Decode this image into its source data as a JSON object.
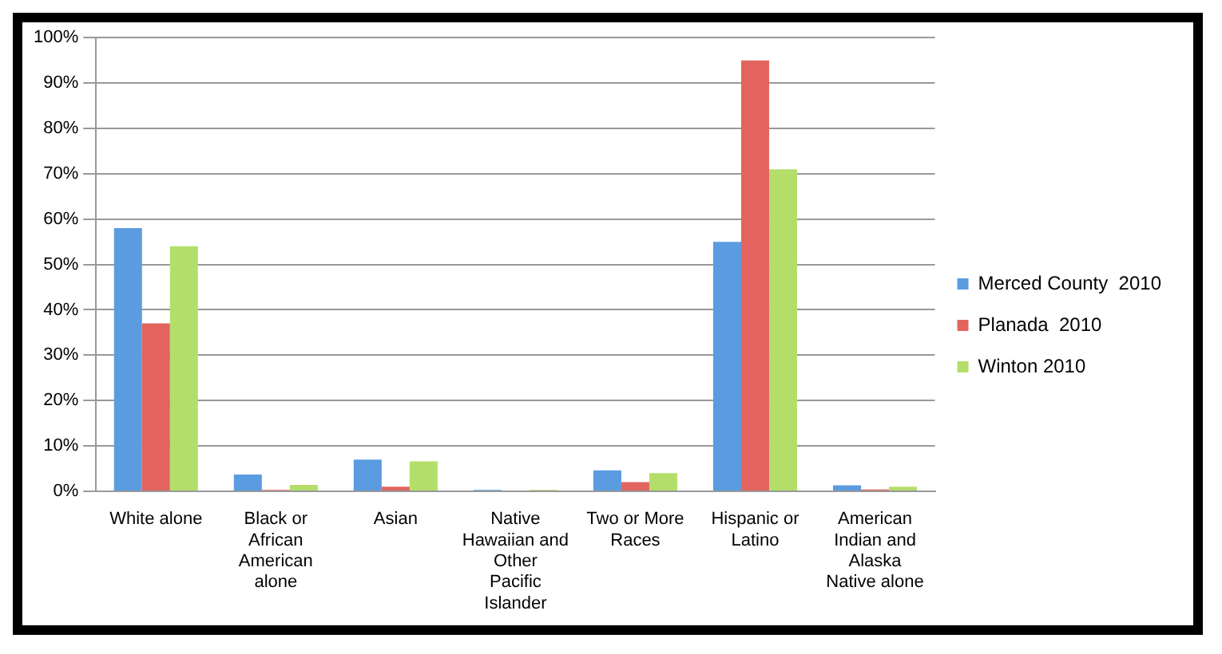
{
  "chart_data": {
    "type": "bar",
    "categories": [
      "White alone",
      "Black or African American alone",
      "Asian",
      "Native Hawaiian and Other Pacific Islander",
      "Two or More Races",
      "Hispanic or Latino",
      "American Indian and Alaska Native alone"
    ],
    "series": [
      {
        "name": "Merced County  2010",
        "color": "#5b9be0",
        "values": [
          58,
          3.7,
          7,
          0.3,
          4.6,
          55,
          1.3
        ]
      },
      {
        "name": "Planada  2010",
        "color": "#e3645e",
        "values": [
          37,
          0.3,
          1,
          null,
          2,
          95,
          0.4
        ]
      },
      {
        "name": "Winton 2010",
        "color": "#b3de6a",
        "values": [
          54,
          1.4,
          6.6,
          0.3,
          4,
          71,
          1
        ]
      }
    ],
    "ylim": [
      0,
      100
    ],
    "yticks": [
      {
        "value": 0,
        "label": "0%"
      },
      {
        "value": 10,
        "label": "10%"
      },
      {
        "value": 20,
        "label": "20%"
      },
      {
        "value": 30,
        "label": "30%"
      },
      {
        "value": 40,
        "label": "40%"
      },
      {
        "value": 50,
        "label": "50%"
      },
      {
        "value": 60,
        "label": "60%"
      },
      {
        "value": 70,
        "label": "70%"
      },
      {
        "value": 80,
        "label": "80%"
      },
      {
        "value": 90,
        "label": "90%"
      },
      {
        "value": 100,
        "label": "100%"
      }
    ],
    "grid": "y",
    "legend": "right"
  }
}
